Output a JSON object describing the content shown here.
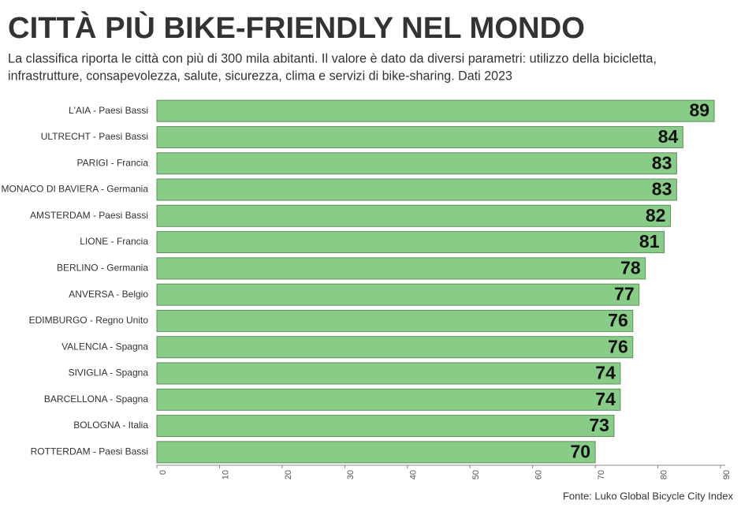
{
  "chart_data": {
    "type": "bar",
    "orientation": "horizontal",
    "title": "CITTÀ PIÙ BIKE-FRIENDLY NEL MONDO",
    "subtitle": [
      "La classifica riporta le città con più di 300 mila abitanti. Il valore è dato da diversi parametri: utilizzo della bicicletta,",
      "infrastrutture, consapevolezza, salute, sicurezza, clima e servizi di bike-sharing. Dati 2023"
    ],
    "categories": [
      "L'AIA - Paesi Bassi",
      "ULTRECHT - Paesi Bassi",
      "PARIGI - Francia",
      "MONACO DI BAVIERA - Germania",
      "AMSTERDAM - Paesi Bassi",
      "LIONE - Francia",
      "BERLINO - Germania",
      "ANVERSA - Belgio",
      "EDIMBURGO - Regno Unito",
      "VALENCIA - Spagna",
      "SIVIGLIA - Spagna",
      "BARCELLONA - Spagna",
      "BOLOGNA - Italia",
      "ROTTERDAM - Paesi Bassi"
    ],
    "values": [
      89,
      84,
      83,
      83,
      82,
      81,
      78,
      77,
      76,
      76,
      74,
      74,
      73,
      70
    ],
    "color": "#88cc88",
    "xlim": [
      0,
      90
    ],
    "xticks": [
      0,
      10,
      20,
      30,
      40,
      50,
      60,
      70,
      80,
      90
    ],
    "source": "Fonte: Luko Global Bicycle City Index"
  }
}
